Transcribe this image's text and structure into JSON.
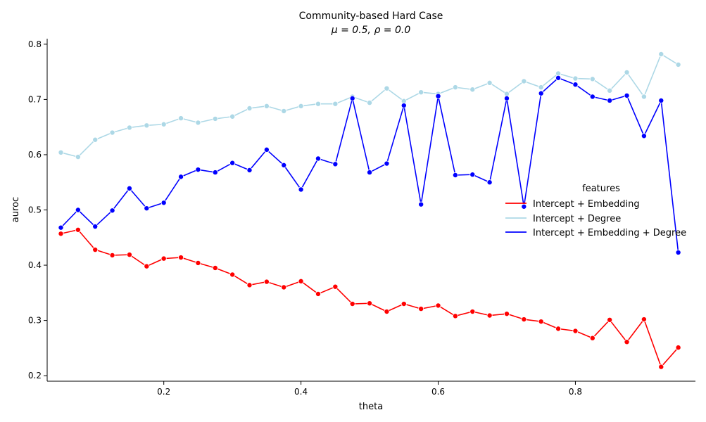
{
  "chart_data": {
    "type": "line",
    "title": "Community-based Hard Case",
    "subtitle": "μ = 0.5, ρ = 0.0",
    "xlabel": "theta",
    "ylabel": "auroc",
    "xlim": [
      0.03,
      0.975
    ],
    "ylim": [
      0.19,
      0.81
    ],
    "xticks": [
      0.2,
      0.4,
      0.6,
      0.8
    ],
    "xtick_labels": [
      "0.2",
      "0.4",
      "0.6",
      "0.8"
    ],
    "yticks": [
      0.2,
      0.3,
      0.4,
      0.5,
      0.6,
      0.7,
      0.8
    ],
    "ytick_labels": [
      "0.2",
      "0.3",
      "0.4",
      "0.5",
      "0.6",
      "0.7",
      "0.8"
    ],
    "grid": false,
    "legend": {
      "title": "features",
      "placement": "center-right"
    },
    "x": [
      0.05,
      0.075,
      0.1,
      0.125,
      0.15,
      0.175,
      0.2,
      0.225,
      0.25,
      0.275,
      0.3,
      0.325,
      0.35,
      0.375,
      0.4,
      0.425,
      0.45,
      0.475,
      0.5,
      0.525,
      0.55,
      0.575,
      0.6,
      0.625,
      0.65,
      0.675,
      0.7,
      0.725,
      0.75,
      0.775,
      0.8,
      0.825,
      0.85,
      0.875,
      0.9,
      0.925,
      0.95
    ],
    "series": [
      {
        "name": "Intercept + Embedding",
        "color": "#ff0000",
        "values": [
          0.457,
          0.464,
          0.428,
          0.418,
          0.419,
          0.398,
          0.412,
          0.414,
          0.404,
          0.395,
          0.383,
          0.364,
          0.37,
          0.36,
          0.371,
          0.348,
          0.361,
          0.33,
          0.331,
          0.316,
          0.33,
          0.321,
          0.327,
          0.308,
          0.316,
          0.309,
          0.312,
          0.302,
          0.298,
          0.285,
          0.281,
          0.268,
          0.301,
          0.261,
          0.302,
          0.216,
          0.251
        ]
      },
      {
        "name": "Intercept + Degree",
        "color": "#add8e6",
        "values": [
          0.604,
          0.596,
          0.627,
          0.64,
          0.649,
          0.653,
          0.655,
          0.666,
          0.658,
          0.665,
          0.669,
          0.684,
          0.688,
          0.679,
          0.688,
          0.692,
          0.692,
          0.705,
          0.694,
          0.72,
          0.697,
          0.713,
          0.71,
          0.722,
          0.718,
          0.73,
          0.71,
          0.733,
          0.722,
          0.747,
          0.738,
          0.737,
          0.716,
          0.749,
          0.705,
          0.782,
          0.763
        ]
      },
      {
        "name": "Intercept + Embedding + Degree",
        "color": "#0000ff",
        "values": [
          0.468,
          0.5,
          0.47,
          0.499,
          0.539,
          0.503,
          0.513,
          0.56,
          0.573,
          0.568,
          0.585,
          0.572,
          0.609,
          0.581,
          0.537,
          0.593,
          0.583,
          0.702,
          0.568,
          0.584,
          0.689,
          0.51,
          0.706,
          0.563,
          0.564,
          0.55,
          0.702,
          0.506,
          0.711,
          0.739,
          0.727,
          0.705,
          0.698,
          0.707,
          0.634,
          0.698,
          0.423
        ]
      }
    ]
  }
}
